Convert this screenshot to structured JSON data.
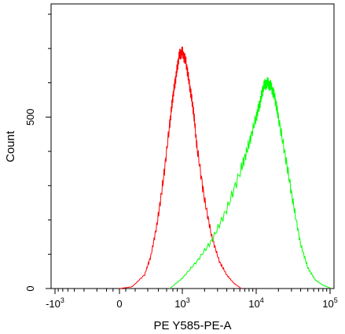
{
  "chart_data": {
    "type": "line",
    "title": "",
    "xlabel": "PE Y585-PE-A",
    "ylabel": "Count",
    "x_scale": "biexponential",
    "x_ticks": [
      {
        "base": "-10",
        "exp": "3",
        "value": -1000
      },
      {
        "base": "0",
        "exp": "",
        "value": 0
      },
      {
        "base": "10",
        "exp": "3",
        "value": 1000
      },
      {
        "base": "10",
        "exp": "4",
        "value": 10000
      },
      {
        "base": "10",
        "exp": "5",
        "value": 100000
      }
    ],
    "y_ticks": [
      {
        "label": "0",
        "value": 0
      },
      {
        "label": "500",
        "value": 500
      }
    ],
    "ylim": [
      0,
      830
    ],
    "grid": false,
    "legend": "none",
    "series": [
      {
        "color": "#ff0000",
        "description_x_unit": "log-decade position",
        "x": [
          1.0,
          1.2,
          1.4,
          1.5,
          1.6,
          1.7,
          1.8,
          1.85,
          1.9,
          1.95,
          2.0,
          2.05,
          2.1,
          2.15,
          2.2,
          2.3,
          2.4,
          2.5,
          2.6,
          2.7,
          2.8
        ],
        "y": [
          0,
          5,
          40,
          95,
          190,
          320,
          480,
          560,
          620,
          680,
          690,
          660,
          590,
          520,
          410,
          260,
          150,
          80,
          40,
          15,
          0
        ]
      },
      {
        "color": "#00ff00",
        "description_x_unit": "log-decade position",
        "x": [
          1.8,
          2.0,
          2.2,
          2.4,
          2.6,
          2.8,
          2.9,
          3.0,
          3.05,
          3.1,
          3.15,
          3.2,
          3.25,
          3.3,
          3.4,
          3.5,
          3.6,
          3.7,
          3.8,
          3.9,
          4.0,
          4.1
        ],
        "y": [
          0,
          30,
          80,
          140,
          230,
          350,
          420,
          500,
          540,
          590,
          600,
          590,
          560,
          500,
          380,
          250,
          130,
          60,
          25,
          10,
          2,
          0
        ]
      }
    ]
  }
}
